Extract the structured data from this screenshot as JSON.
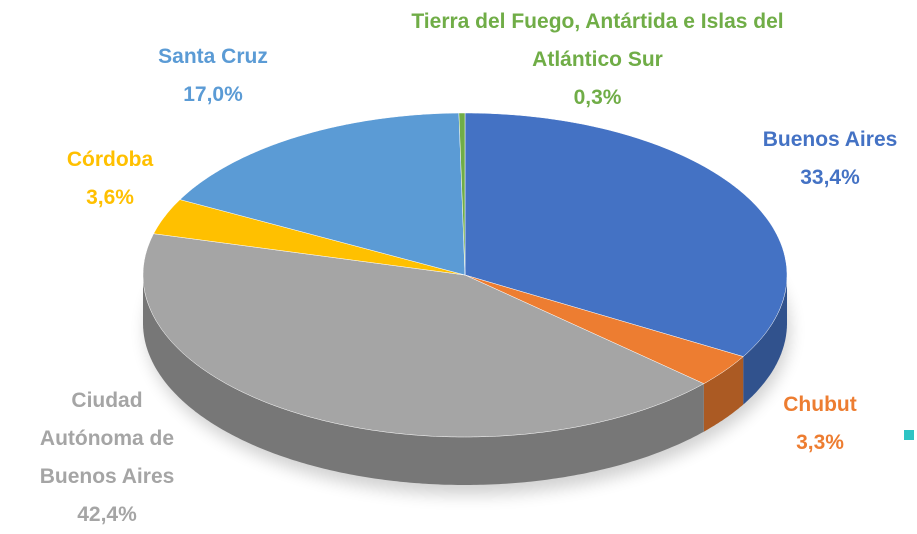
{
  "chart_data": {
    "type": "pie",
    "categories": [
      "Buenos Aires",
      "Chubut",
      "Ciudad Autónoma de Buenos Aires",
      "Córdoba",
      "Santa Cruz",
      "Tierra del Fuego, Antártida e Islas del Atlántico Sur"
    ],
    "values": [
      33.4,
      3.3,
      42.4,
      3.6,
      17.0,
      0.3
    ],
    "value_labels": [
      "33,4%",
      "3,3%",
      "42,4%",
      "3,6%",
      "17,0%",
      "0,3%"
    ],
    "colors": [
      "#4472c4",
      "#ed7d31",
      "#a5a5a5",
      "#ffc000",
      "#5b9bd5",
      "#70ad47"
    ]
  }
}
